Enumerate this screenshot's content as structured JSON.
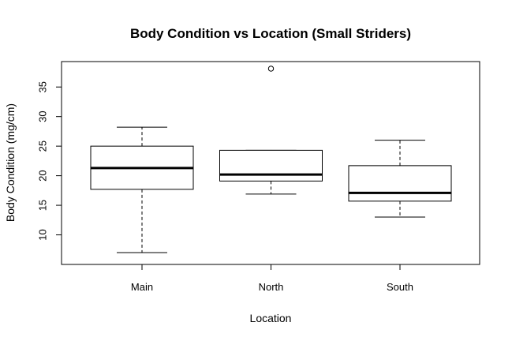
{
  "chart_data": {
    "type": "boxplot",
    "title": "Body Condition vs Location (Small Striders)",
    "xlabel": "Location",
    "ylabel": "Body Condition (mg/cm)",
    "categories": [
      "Main",
      "North",
      "South"
    ],
    "ylim": [
      5.0,
      39.3
    ],
    "yticks": [
      10,
      15,
      20,
      25,
      30,
      35
    ],
    "grid": false,
    "legend": "none",
    "boxes": [
      {
        "category": "Main",
        "whisker_low": 7.0,
        "q1": 17.7,
        "median": 21.3,
        "q3": 25.0,
        "whisker_high": 28.2,
        "outliers": []
      },
      {
        "category": "North",
        "whisker_low": 16.9,
        "q1": 19.1,
        "median": 20.2,
        "q3": 24.3,
        "whisker_high": 24.3,
        "outliers": [
          38.1
        ]
      },
      {
        "category": "South",
        "whisker_low": 13.0,
        "q1": 15.7,
        "median": 17.1,
        "q3": 21.7,
        "whisker_high": 26.0,
        "outliers": []
      }
    ]
  }
}
